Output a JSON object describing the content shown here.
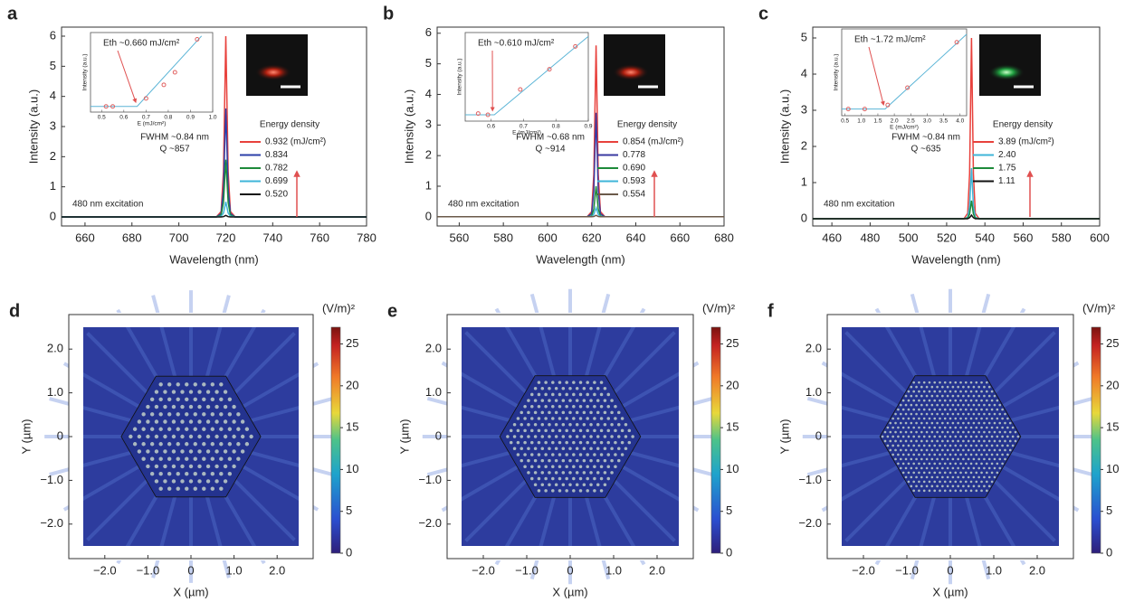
{
  "chart_data": [
    {
      "type": "line",
      "label": "a",
      "xlabel": "Wavelength (nm)",
      "ylabel": "Intensity (a.u.)",
      "xlim": [
        650,
        780
      ],
      "ylim": [
        -0.3,
        6.3
      ],
      "xticks": [
        660,
        680,
        700,
        720,
        740,
        760,
        780
      ],
      "yticks": [
        0,
        1,
        2,
        3,
        4,
        5,
        6
      ],
      "x": [
        650,
        716,
        718,
        719,
        720,
        721,
        722,
        724,
        780
      ],
      "series": [
        {
          "name": "0.932 (mJ/cm²)",
          "color": "#e8413c",
          "values": [
            0,
            0,
            0.18,
            1.5,
            6,
            1.5,
            0.18,
            0,
            0
          ]
        },
        {
          "name": "0.834",
          "color": "#2b3fa8",
          "values": [
            0,
            0,
            0.11,
            0.9,
            3.6,
            0.9,
            0.11,
            0,
            0
          ]
        },
        {
          "name": "0.782",
          "color": "#1e8a3a",
          "values": [
            0,
            0,
            0.06,
            0.48,
            1.9,
            0.48,
            0.06,
            0,
            0
          ]
        },
        {
          "name": "0.699",
          "color": "#3fb6d8",
          "values": [
            0,
            0,
            0.02,
            0.13,
            0.5,
            0.13,
            0.02,
            0,
            0
          ]
        },
        {
          "name": "0.520",
          "color": "#111111",
          "values": [
            0,
            0,
            0,
            0.01,
            0.05,
            0.01,
            0,
            0,
            0
          ]
        }
      ],
      "legend_title": "Energy density",
      "fwhm": "FWHM ~0.84 nm",
      "q": "Q ~857",
      "excitation": "480 nm excitation",
      "inset": {
        "type": "scatter",
        "xlim": [
          0.45,
          1.0
        ],
        "ylim": [
          -0.5,
          6.5
        ],
        "xticks": [
          0.5,
          0.6,
          0.7,
          0.8,
          0.9,
          {
            "value": 1,
            "label": "1.0"
          }
        ],
        "xlabel": "E (mJ/cm²)",
        "ylabel": "Intensity (a.u.)",
        "annotation": "Eth ~0.660 mJ/cm²",
        "color": "#e06060",
        "x": [
          0.52,
          0.55,
          0.7,
          0.78,
          0.83,
          0.93
        ],
        "y": [
          0,
          0,
          0.7,
          1.9,
          3.0,
          5.9
        ],
        "fit": {
          "color": "#5ab4d6",
          "x": [
            0.45,
            0.66,
            0.95
          ],
          "y": [
            0,
            0,
            6.2
          ]
        }
      }
    },
    {
      "type": "line",
      "label": "b",
      "xlabel": "Wavelength (nm)",
      "ylabel": "Intensity (a.u.)",
      "xlim": [
        550,
        680
      ],
      "ylim": [
        -0.3,
        6.2
      ],
      "xticks": [
        560,
        580,
        600,
        620,
        640,
        660,
        680
      ],
      "yticks": [
        0,
        1,
        2,
        3,
        4,
        5,
        6
      ],
      "x": [
        550,
        618,
        620,
        621,
        622,
        623,
        624,
        626,
        680
      ],
      "series": [
        {
          "name": "0.854 (mJ/cm²)",
          "color": "#e8413c",
          "values": [
            0,
            0,
            0.17,
            1.4,
            5.6,
            1.4,
            0.17,
            0,
            0
          ]
        },
        {
          "name": "0.778",
          "color": "#3a3aa0",
          "values": [
            0,
            0,
            0.1,
            0.85,
            3.4,
            0.85,
            0.1,
            0,
            0
          ]
        },
        {
          "name": "0.690",
          "color": "#1e8a3a",
          "values": [
            0,
            0,
            0.03,
            0.25,
            1.0,
            0.25,
            0.03,
            0,
            0
          ]
        },
        {
          "name": "0.593",
          "color": "#3fb6d8",
          "values": [
            0,
            0,
            0.01,
            0.08,
            0.3,
            0.08,
            0.01,
            0,
            0
          ]
        },
        {
          "name": "0.554",
          "color": "#6b5a4a",
          "values": [
            0,
            0,
            0,
            0.01,
            0.05,
            0.01,
            0,
            0,
            0
          ]
        }
      ],
      "legend_title": "Energy density",
      "fwhm": "FWHM ~0.68 nm",
      "q": "Q ~914",
      "excitation": "480 nm excitation",
      "inset": {
        "type": "scatter",
        "xlim": [
          0.52,
          0.9
        ],
        "ylim": [
          -0.5,
          6.5
        ],
        "xticks": [
          0.6,
          0.7,
          0.8,
          0.9
        ],
        "xlabel": "E (mJ/cm²)",
        "ylabel": "Intensity (a.u.)",
        "annotation": "Eth ~0.610 mJ/cm²",
        "color": "#e06060",
        "x": [
          0.56,
          0.59,
          0.69,
          0.78,
          0.86
        ],
        "y": [
          0.1,
          0,
          2.0,
          3.6,
          5.4
        ],
        "fit": {
          "color": "#5ab4d6",
          "x": [
            0.52,
            0.61,
            0.9
          ],
          "y": [
            0,
            0,
            6.2
          ]
        }
      }
    },
    {
      "type": "line",
      "label": "c",
      "xlabel": "Wavelength (nm)",
      "ylabel": "Intensity (a.u.)",
      "xlim": [
        450,
        600
      ],
      "ylim": [
        -0.2,
        5.3
      ],
      "xticks": [
        460,
        480,
        500,
        520,
        540,
        560,
        580,
        600
      ],
      "yticks": [
        0,
        1,
        2,
        3,
        4,
        5
      ],
      "x": [
        450,
        529,
        531,
        532,
        533,
        534,
        535,
        537,
        600
      ],
      "series": [
        {
          "name": "3.89 (mJ/cm²)",
          "color": "#e8413c",
          "values": [
            0,
            0,
            0.15,
            1.25,
            5,
            1.25,
            0.15,
            0,
            0
          ]
        },
        {
          "name": "2.40",
          "color": "#3fb6d8",
          "values": [
            0,
            0,
            0.04,
            0.35,
            1.4,
            0.35,
            0.04,
            0,
            0
          ]
        },
        {
          "name": "1.75",
          "color": "#1e8a3a",
          "values": [
            0,
            0,
            0.02,
            0.13,
            0.5,
            0.13,
            0.02,
            0,
            0
          ]
        },
        {
          "name": "1.11",
          "color": "#111111",
          "values": [
            0,
            0,
            0,
            0.03,
            0.1,
            0.03,
            0,
            0,
            0
          ]
        }
      ],
      "legend_title": "Energy density",
      "fwhm": "FWHM ~0.84 nm",
      "q": "Q ~635",
      "excitation": "480 nm excitation",
      "inset": {
        "type": "scatter",
        "xlim": [
          0.4,
          4.2
        ],
        "ylim": [
          -0.5,
          6.0
        ],
        "xticks": [
          0.5,
          {
            "value": 1,
            "label": "1.0"
          },
          1.5,
          {
            "value": 2,
            "label": "2.0"
          },
          2.5,
          {
            "value": 3,
            "label": "3.0"
          },
          3.5,
          {
            "value": 4,
            "label": "4.0"
          }
        ],
        "xlabel": "E (mJ/cm²)",
        "ylabel": "Intensity (a.u.)",
        "annotation": "Eth ~1.72 mJ/cm²",
        "color": "#e06060",
        "x": [
          0.6,
          1.1,
          1.8,
          2.4,
          3.9
        ],
        "y": [
          0,
          0,
          0.3,
          1.6,
          5.0
        ],
        "fit": {
          "color": "#5ab4d6",
          "x": [
            0.4,
            1.72,
            4.2
          ],
          "y": [
            0,
            0,
            5.6
          ]
        }
      }
    },
    {
      "type": "heatmap",
      "label": "d",
      "xlabel": "X (µm)",
      "ylabel": "Y (µm)",
      "xlim": [
        -2.5,
        2.5
      ],
      "ylim": [
        -2.5,
        2.5
      ],
      "xticks": [
        {
          "value": -2,
          "label": "−2.0"
        },
        {
          "value": -1,
          "label": "−1.0"
        },
        0,
        {
          "value": 1,
          "label": "1.0"
        },
        {
          "value": 2,
          "label": "2.0"
        }
      ],
      "yticks": [
        {
          "value": -2,
          "label": "−2.0"
        },
        {
          "value": -1,
          "label": "−1.0"
        },
        0,
        {
          "value": 1,
          "label": "1.0"
        },
        {
          "value": 2,
          "label": "2.0"
        }
      ],
      "clim": [
        0,
        27
      ],
      "cticks": [
        0,
        5,
        10,
        15,
        20,
        25
      ],
      "clabel": "(V/m)²"
    },
    {
      "type": "heatmap",
      "label": "e",
      "xlabel": "X (µm)",
      "ylabel": "Y (µm)",
      "xlim": [
        -2.5,
        2.5
      ],
      "ylim": [
        -2.5,
        2.5
      ],
      "xticks": [
        {
          "value": -2,
          "label": "−2.0"
        },
        {
          "value": -1,
          "label": "−1.0"
        },
        0,
        {
          "value": 1,
          "label": "1.0"
        },
        {
          "value": 2,
          "label": "2.0"
        }
      ],
      "yticks": [
        {
          "value": -2,
          "label": "−2.0"
        },
        {
          "value": -1,
          "label": "−1.0"
        },
        0,
        {
          "value": 1,
          "label": "1.0"
        },
        {
          "value": 2,
          "label": "2.0"
        }
      ],
      "clim": [
        0,
        27
      ],
      "cticks": [
        0,
        5,
        10,
        15,
        20,
        25
      ],
      "clabel": "(V/m)²"
    },
    {
      "type": "heatmap",
      "label": "f",
      "xlabel": "X (µm)",
      "ylabel": "Y (µm)",
      "xlim": [
        -2.5,
        2.5
      ],
      "ylim": [
        -2.5,
        2.5
      ],
      "xticks": [
        {
          "value": -2,
          "label": "−2.0"
        },
        {
          "value": -1,
          "label": "−1.0"
        },
        0,
        {
          "value": 1,
          "label": "1.0"
        },
        {
          "value": 2,
          "label": "2.0"
        }
      ],
      "yticks": [
        {
          "value": -2,
          "label": "−2.0"
        },
        {
          "value": -1,
          "label": "−1.0"
        },
        0,
        {
          "value": 1,
          "label": "1.0"
        },
        {
          "value": 2,
          "label": "2.0"
        }
      ],
      "clim": [
        0,
        27
      ],
      "cticks": [
        0,
        5,
        10,
        15,
        20,
        25
      ],
      "clabel": "(V/m)²"
    }
  ]
}
